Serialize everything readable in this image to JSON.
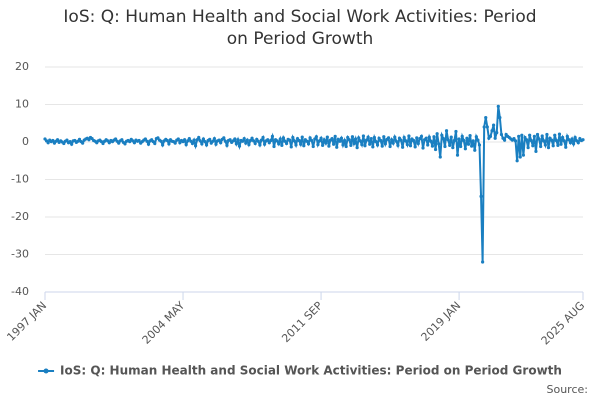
{
  "chart_data": {
    "type": "line",
    "title": "IoS: Q: Human Health and Social Work Activities: Period on Period Growth",
    "source": "Source:",
    "categories": [
      "1997 JAN",
      null,
      null,
      null,
      null,
      null,
      null,
      null,
      null,
      null,
      null,
      null,
      null,
      null,
      null,
      null,
      null,
      null,
      null,
      null,
      null,
      null,
      null,
      null,
      null,
      null,
      null,
      null,
      null,
      null,
      null,
      null,
      null,
      null,
      null,
      null,
      null,
      null,
      null,
      null,
      null,
      null,
      null,
      null,
      null,
      null,
      null,
      null,
      null,
      null,
      null,
      null,
      null,
      null,
      null,
      null,
      null,
      null,
      null,
      null,
      null,
      null,
      null,
      null,
      null,
      null,
      null,
      null,
      null,
      null,
      null,
      null,
      null,
      null,
      null,
      null,
      null,
      null,
      null,
      null,
      null,
      null,
      null,
      null,
      null,
      null,
      null,
      null,
      "2004 MAY",
      null,
      null,
      null,
      null,
      null,
      null,
      null,
      null,
      null,
      null,
      null,
      null,
      null,
      null,
      null,
      null,
      null,
      null,
      null,
      null,
      null,
      null,
      null,
      null,
      null,
      null,
      null,
      null,
      null,
      null,
      null,
      null,
      null,
      null,
      null,
      null,
      null,
      null,
      null,
      null,
      null,
      null,
      null,
      null,
      null,
      null,
      null,
      null,
      null,
      null,
      null,
      null,
      null,
      null,
      null,
      null,
      null,
      null,
      null,
      null,
      null,
      null,
      null,
      null,
      null,
      null,
      null,
      null,
      null,
      null,
      null,
      null,
      null,
      null,
      null,
      null,
      null,
      null,
      null,
      null,
      null,
      null,
      null,
      null,
      null,
      null,
      null,
      "2011 SEP",
      null,
      null,
      null,
      null,
      null,
      null,
      null,
      null,
      null,
      null,
      null,
      null,
      null,
      null,
      null,
      null,
      null,
      null,
      null,
      null,
      null,
      null,
      null,
      null,
      null,
      null,
      null,
      null,
      null,
      null,
      null,
      null,
      null,
      null,
      null,
      null,
      null,
      null,
      null,
      null,
      null,
      null,
      null,
      null,
      null,
      null,
      null,
      null,
      null,
      null,
      null,
      null,
      null,
      null,
      null,
      null,
      null,
      null,
      null,
      null,
      null,
      null,
      null,
      null,
      null,
      null,
      null,
      null,
      null,
      null,
      null,
      null,
      null,
      null,
      null,
      null,
      null,
      null,
      null,
      null,
      null,
      null,
      null,
      null,
      null,
      null,
      null,
      "2019 JAN",
      null,
      null,
      null,
      null,
      null,
      null,
      null,
      null,
      null,
      null,
      null,
      null,
      null,
      null,
      null,
      null,
      null,
      null,
      null,
      null,
      null,
      null,
      null,
      null,
      null,
      null,
      null,
      null,
      null,
      null,
      null,
      null,
      null,
      null,
      null,
      null,
      null,
      null,
      null,
      null,
      null,
      null,
      null,
      null,
      null,
      null,
      null,
      null,
      null,
      null,
      null,
      null,
      null,
      null,
      null,
      null,
      null,
      null,
      null,
      null,
      null,
      null,
      null,
      null,
      null,
      null,
      null,
      null,
      null,
      null,
      null,
      null,
      null,
      null,
      null,
      null,
      null,
      null,
      "2025 AUG"
    ],
    "series": [
      {
        "name": "IoS: Q: Human Health and Social Work Activities: Period on Period Growth",
        "color": "#1a7fc1",
        "values": [
          0.8,
          0.3,
          -0.2,
          0.5,
          0.1,
          0.4,
          -0.3,
          0.2,
          0.6,
          -0.1,
          0.3,
          0.0,
          -0.4,
          0.2,
          0.5,
          -0.2,
          0.1,
          -0.6,
          0.3,
          0.4,
          -0.1,
          0.2,
          0.7,
          0.1,
          -0.3,
          0.5,
          0.8,
          1.0,
          0.6,
          1.2,
          0.9,
          0.4,
          0.2,
          -0.2,
          0.3,
          0.5,
          0.1,
          -0.4,
          0.2,
          0.6,
          0.3,
          -0.2,
          0.4,
          0.1,
          0.5,
          0.8,
          0.2,
          -0.3,
          0.3,
          0.6,
          -0.1,
          -0.5,
          0.2,
          0.4,
          0.1,
          0.7,
          0.3,
          -0.2,
          0.5,
          0.2,
          0.4,
          -0.3,
          0.1,
          0.5,
          0.8,
          0.2,
          -0.6,
          0.3,
          0.6,
          0.1,
          -0.4,
          0.9,
          1.1,
          0.5,
          0.2,
          -0.8,
          0.3,
          0.7,
          0.4,
          -0.5,
          0.6,
          0.2,
          0.1,
          -0.3,
          0.5,
          0.8,
          -0.2,
          0.4,
          0.1,
          0.6,
          -0.7,
          0.3,
          0.9,
          0.2,
          -0.4,
          0.5,
          -1.0,
          0.6,
          1.2,
          0.3,
          -0.5,
          0.8,
          0.1,
          -0.8,
          0.4,
          0.7,
          -0.3,
          0.2,
          0.9,
          -0.6,
          0.3,
          0.5,
          -0.2,
          0.7,
          1.1,
          0.2,
          -0.9,
          0.4,
          0.6,
          -0.1,
          0.3,
          0.8,
          -0.5,
          0.6,
          -1.1,
          0.4,
          0.2,
          0.9,
          -0.3,
          0.5,
          -0.7,
          0.4,
          1.0,
          0.3,
          -0.4,
          0.7,
          0.2,
          -0.8,
          0.5,
          1.2,
          -0.6,
          0.3,
          0.6,
          -0.2,
          0.4,
          1.5,
          -1.2,
          0.6,
          0.3,
          -0.5,
          0.8,
          -0.9,
          1.1,
          0.2,
          -0.4,
          0.7,
          0.5,
          -1.3,
          1.2,
          0.3,
          -0.8,
          0.9,
          0.4,
          -0.6,
          1.3,
          -1.0,
          0.6,
          0.2,
          -0.5,
          1.1,
          0.4,
          -1.2,
          0.8,
          1.4,
          -0.7,
          0.3,
          1.0,
          -0.9,
          0.6,
          -0.3,
          1.3,
          -1.1,
          0.5,
          0.9,
          -0.6,
          1.5,
          -1.4,
          0.7,
          0.2,
          1.0,
          -0.8,
          0.4,
          -1.2,
          1.2,
          0.6,
          -0.9,
          1.4,
          -0.4,
          0.8,
          -1.5,
          1.1,
          0.3,
          -0.7,
          1.6,
          -1.0,
          0.5,
          1.3,
          -0.6,
          0.9,
          -1.3,
          1.2,
          0.1,
          -0.8,
          1.0,
          0.4,
          -1.1,
          1.4,
          -0.5,
          0.7,
          1.1,
          -1.2,
          0.6,
          -0.3,
          1.3,
          0.2,
          -0.9,
          1.0,
          0.5,
          -1.4,
          1.2,
          0.3,
          -0.7,
          1.6,
          -1.0,
          0.8,
          0.4,
          -1.3,
          1.1,
          -0.4,
          0.9,
          1.5,
          -1.6,
          0.6,
          1.0,
          -0.8,
          1.3,
          0.2,
          -1.1,
          1.4,
          -2.0,
          2.2,
          -0.5,
          -4.0,
          1.8,
          0.9,
          -1.2,
          3.0,
          0.6,
          -0.9,
          1.3,
          -1.5,
          0.4,
          2.8,
          -3.5,
          0.8,
          -1.2,
          1.5,
          0.4,
          -1.8,
          1.0,
          -0.6,
          1.7,
          -1.1,
          0.3,
          -2.2,
          1.4,
          0.5,
          -0.8,
          -14.5,
          -32.0,
          4.0,
          6.5,
          4.0,
          1.0,
          1.5,
          3.0,
          4.5,
          1.0,
          2.5,
          9.5,
          6.5,
          2.0,
          1.0,
          0.5,
          2.0,
          1.5,
          1.2,
          0.8,
          0.5,
          0.9,
          0.3,
          -5.0,
          1.5,
          -4.0,
          1.8,
          -3.5,
          1.2,
          0.6,
          -1.5,
          1.8,
          0.4,
          -1.0,
          1.5,
          -2.5,
          2.0,
          0.8,
          -1.2,
          1.6,
          0.3,
          -0.8,
          2.0,
          -1.5,
          1.0,
          0.5,
          -1.0,
          1.8,
          0.4,
          -0.9,
          2.1,
          -0.6,
          1.2,
          0.3,
          -1.4,
          1.5,
          0.6,
          -0.2,
          0.8,
          -0.5,
          1.2,
          0.3,
          -0.2,
          0.9,
          0.4,
          0.6
        ]
      }
    ],
    "ylim": [
      -40,
      20
    ],
    "yticks": [
      -40,
      -30,
      -20,
      -10,
      0,
      10,
      20
    ],
    "grid": true,
    "legend": "bottom"
  }
}
